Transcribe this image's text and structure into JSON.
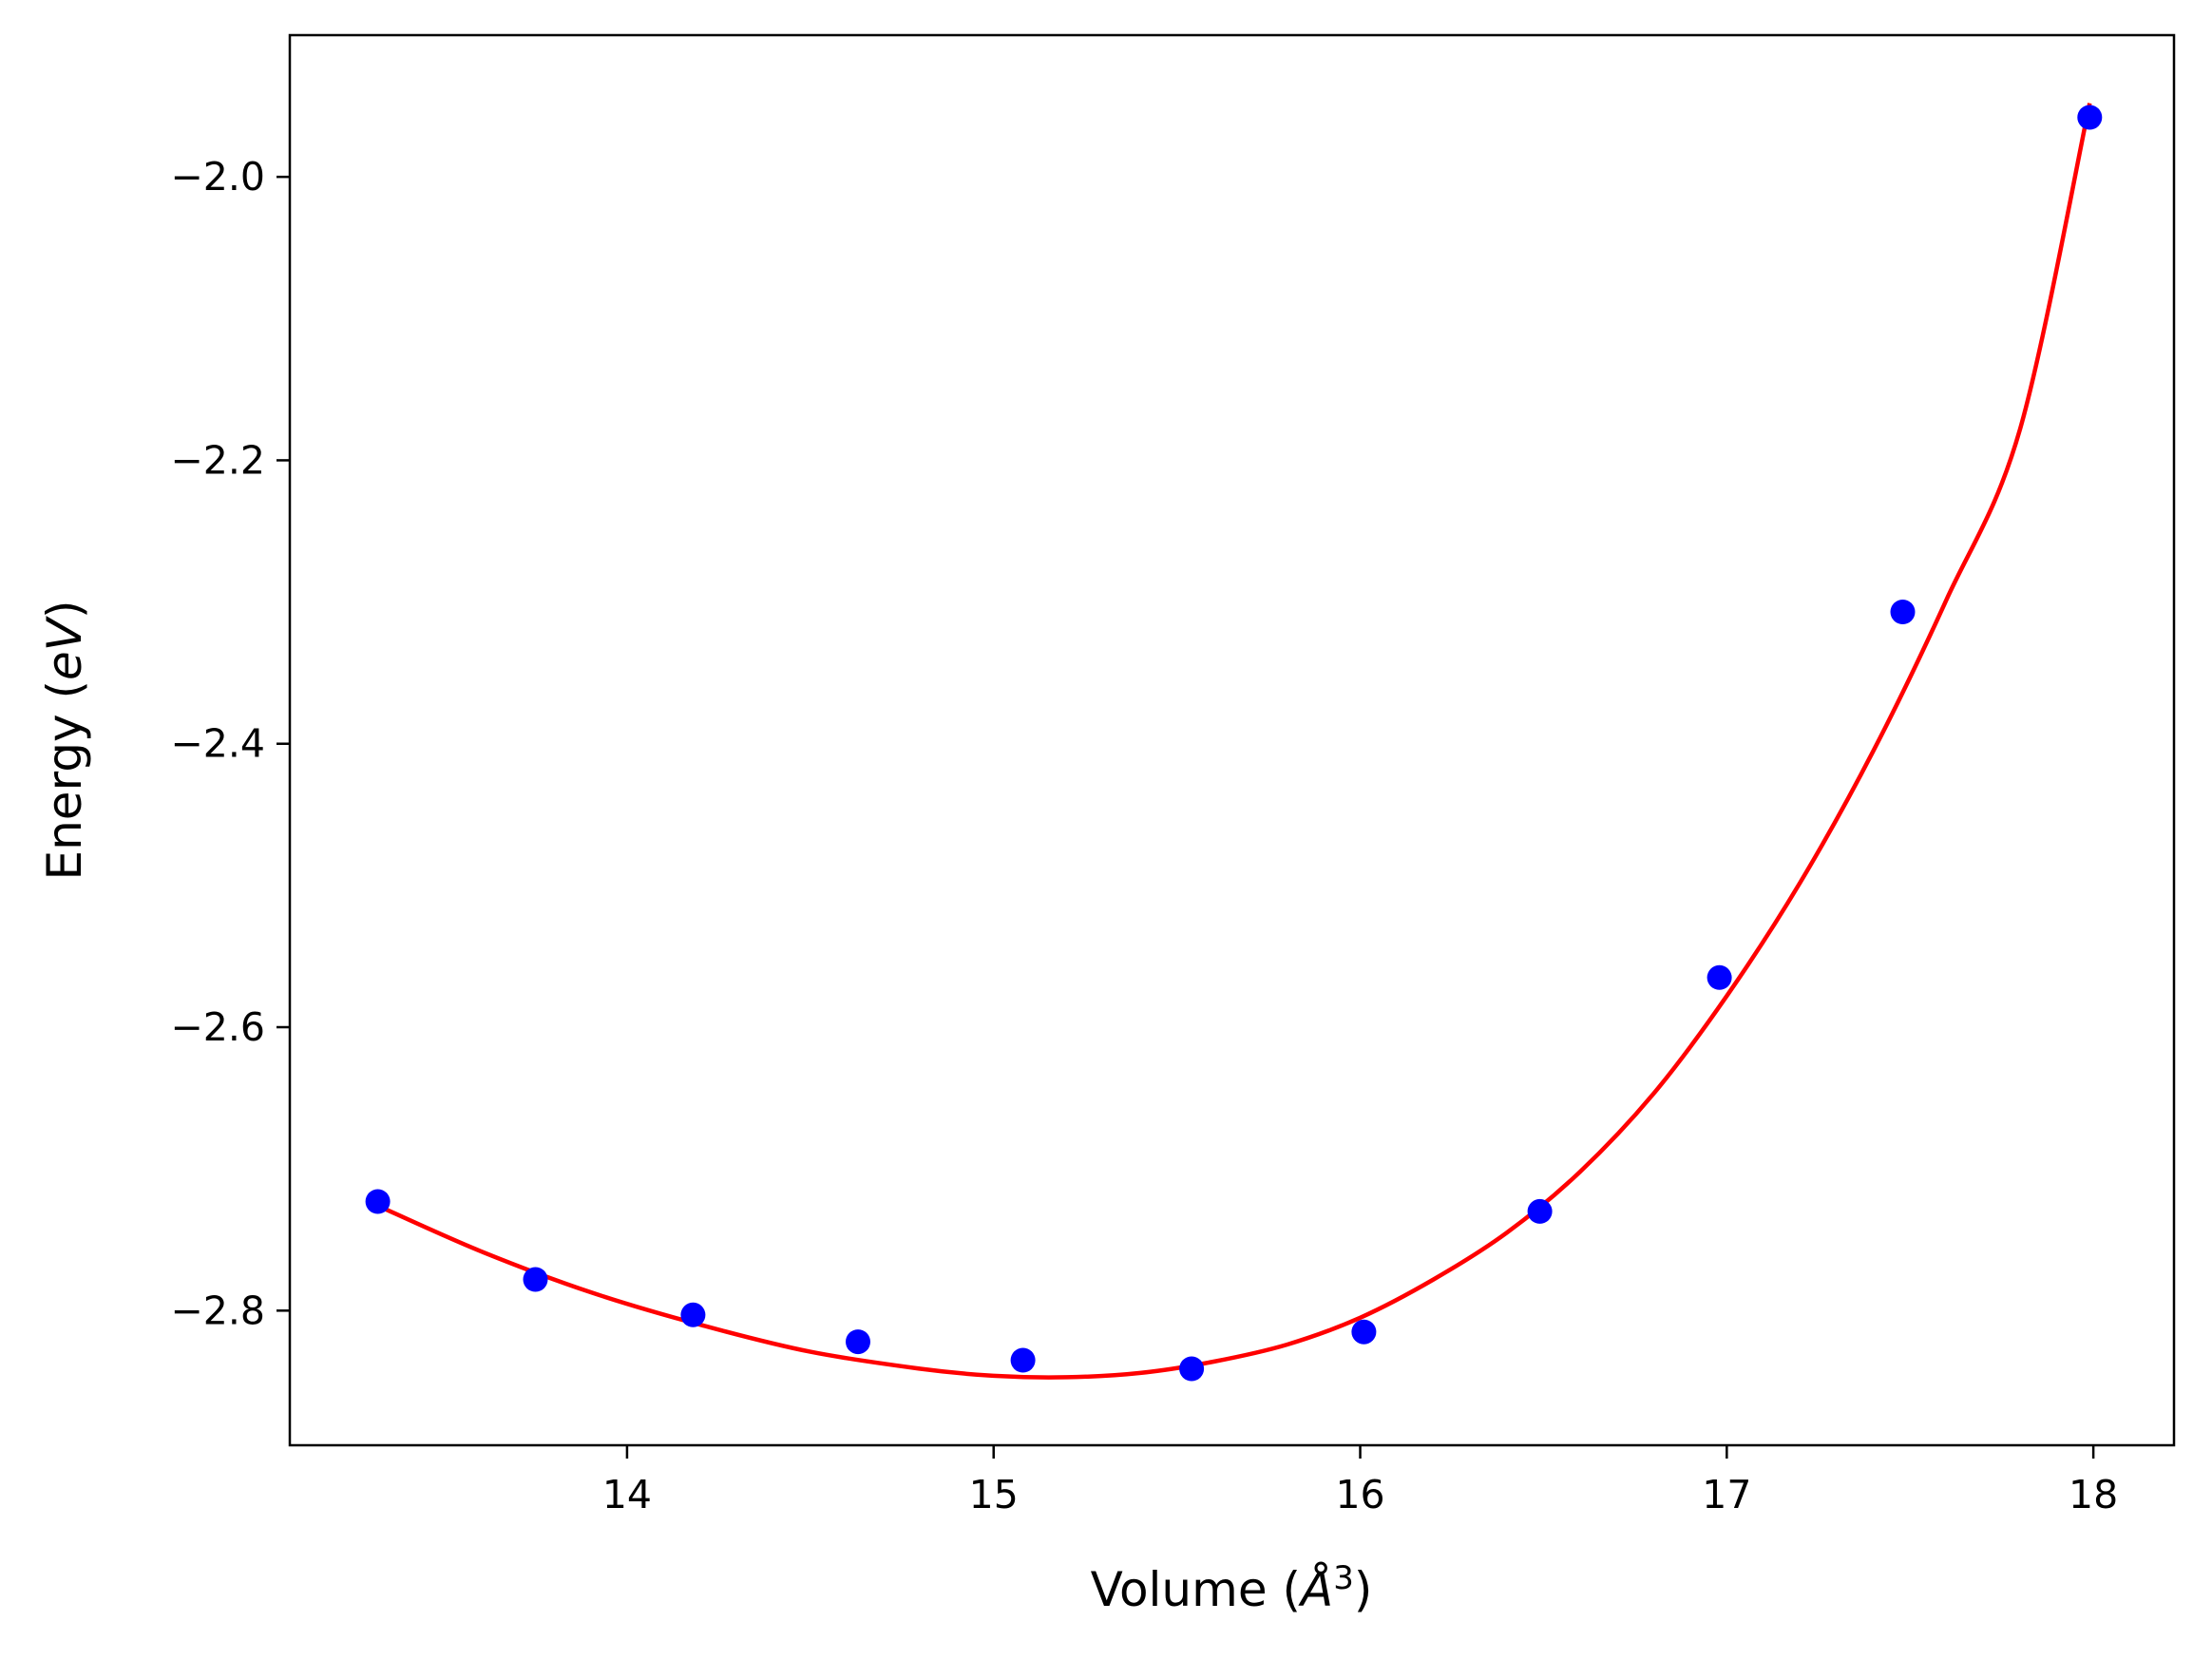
{
  "chart_data": {
    "type": "scatter",
    "title": "",
    "xlabel": "Volume (",
    "xlabel_unit": "Å",
    "xlabel_sup": "3",
    "xlabel_close": ")",
    "ylabel": "Energy (",
    "ylabel_unit": "eV",
    "ylabel_close": ")",
    "xlim": [
      13.08,
      18.22
    ],
    "ylim": [
      -2.895,
      -1.9
    ],
    "xticks": [
      14,
      15,
      16,
      17,
      18
    ],
    "xtick_labels": [
      "14",
      "15",
      "16",
      "17",
      "18"
    ],
    "yticks": [
      -2.0,
      -2.2,
      -2.4,
      -2.6,
      -2.8
    ],
    "ytick_labels": [
      "−2.0",
      "−2.2",
      "−2.4",
      "−2.6",
      "−2.8"
    ],
    "grid": false,
    "legend": "none",
    "series": [
      {
        "kind": "points",
        "color": "#0000ff",
        "x": [
          13.32,
          13.75,
          14.18,
          14.63,
          15.08,
          15.54,
          16.01,
          16.49,
          16.98,
          17.48,
          17.99
        ],
        "y": [
          -2.723,
          -2.778,
          -2.803,
          -2.822,
          -2.835,
          -2.841,
          -2.815,
          -2.73,
          -2.565,
          -2.307,
          -1.958
        ]
      },
      {
        "kind": "fit-curve",
        "color": "#ff0000",
        "x": [
          13.32,
          13.6,
          13.9,
          14.2,
          14.5,
          14.8,
          15.0,
          15.2,
          15.4,
          15.6,
          15.8,
          16.0,
          16.2,
          16.4,
          16.6,
          16.8,
          17.0,
          17.2,
          17.4,
          17.6,
          17.8,
          17.99
        ],
        "y": [
          -2.726,
          -2.758,
          -2.787,
          -2.81,
          -2.829,
          -2.841,
          -2.846,
          -2.847,
          -2.844,
          -2.836,
          -2.824,
          -2.805,
          -2.778,
          -2.745,
          -2.702,
          -2.647,
          -2.578,
          -2.498,
          -2.405,
          -2.298,
          -2.178,
          -1.948
        ]
      }
    ]
  }
}
